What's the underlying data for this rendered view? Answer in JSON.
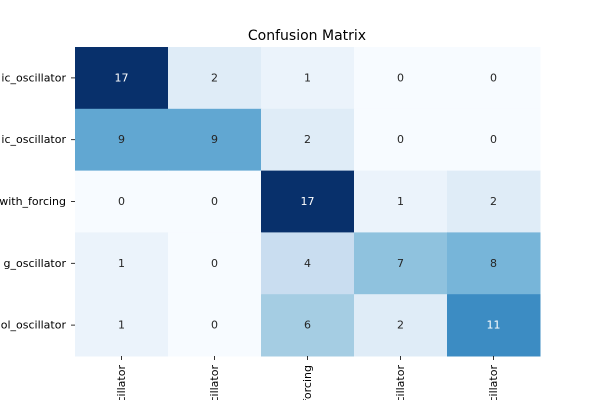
{
  "chart_data": {
    "type": "heatmap",
    "title": "Confusion Matrix",
    "colormap": "Blues",
    "row_labels": [
      "ic_oscillator",
      "ic_oscillator",
      "with_forcing",
      "g_oscillator",
      "ol_oscillator"
    ],
    "col_labels": [
      "cillator",
      "cillator",
      "forcing",
      "cillator",
      "cillator"
    ],
    "values": [
      [
        17,
        2,
        1,
        0,
        0
      ],
      [
        9,
        9,
        2,
        0,
        0
      ],
      [
        0,
        0,
        17,
        1,
        2
      ],
      [
        1,
        0,
        4,
        7,
        8
      ],
      [
        1,
        0,
        6,
        2,
        11
      ]
    ],
    "vmin": 0,
    "vmax": 17,
    "colorbar": false
  }
}
